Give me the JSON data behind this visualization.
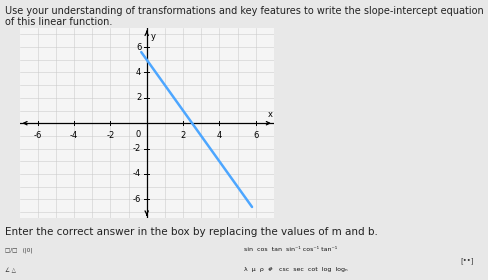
{
  "title": "Use your understanding of transformations and key features to write the slope-intercept equation of this linear function.",
  "footer_text": "Enter the correct answer in the box by replacing the values of m and b.",
  "xlabel": "x",
  "ylabel": "y",
  "xlim": [
    -7,
    7
  ],
  "ylim": [
    -7.5,
    7.5
  ],
  "xticks": [
    -6,
    -4,
    -2,
    2,
    4,
    6
  ],
  "yticks": [
    -6,
    -4,
    -2,
    2,
    4,
    6
  ],
  "slope": -2,
  "intercept": 5,
  "line_color": "#4da6ff",
  "line_width": 1.8,
  "grid_color": "#cccccc",
  "background_color": "#e8e8e8",
  "plot_bg_color": "#f5f5f5",
  "axis_color": "#000000",
  "x_line_start": -0.3,
  "x_line_end": 5.8,
  "title_fontsize": 7.0,
  "footer_fontsize": 7.5,
  "tick_fontsize": 6.0
}
